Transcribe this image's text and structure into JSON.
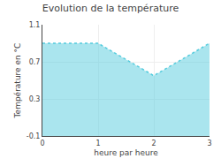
{
  "chart_data": {
    "type": "area",
    "title": "Evolution de la température",
    "xlabel": "heure par heure",
    "ylabel": "Température en °C",
    "x": [
      0,
      1,
      2,
      3
    ],
    "values": [
      0.9,
      0.9,
      0.55,
      0.9
    ],
    "color": "#55ccdd",
    "line_style": "dotted",
    "xlim": [
      0,
      3
    ],
    "ylim": [
      -0.1,
      1.1
    ],
    "xticks": [
      0,
      1,
      2,
      3
    ],
    "yticks": [
      -0.1,
      0.3,
      0.7,
      1.1
    ],
    "grid": true
  }
}
